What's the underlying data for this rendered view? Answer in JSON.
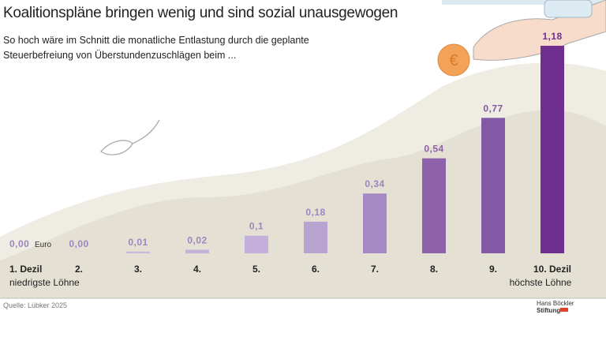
{
  "title": "Koalitionspläne bringen wenig und sind sozial unausgewogen",
  "subtitle": "So hoch wäre im Schnitt die monatliche Entlastung durch die geplante Steuerbefreiung von Überstundenzuschlägen beim ...",
  "source": "Quelle: Lübker 2025",
  "logo": [
    "Hans Böckler",
    "Stiftung"
  ],
  "chart_data": {
    "type": "bar",
    "categories": [
      "1. Dezil",
      "2.",
      "3.",
      "4.",
      "5.",
      "6.",
      "7.",
      "8.",
      "9.",
      "10. Dezil"
    ],
    "category_sublabels": [
      "niedrigste Löhne",
      null,
      null,
      null,
      null,
      null,
      null,
      null,
      null,
      "höchste Löhne"
    ],
    "values": [
      0,
      0,
      0.01,
      0.02,
      0.1,
      0.18,
      0.34,
      0.54,
      0.77,
      1.18
    ],
    "value_labels": [
      "0,00",
      "0,00",
      "0,01",
      "0,02",
      "0,1",
      "0,18",
      "0,34",
      "0,54",
      "0,77",
      "1,18"
    ],
    "unit": "Euro",
    "colors": [
      "#c5b7d8",
      "#c5b7d8",
      "#c9b8dc",
      "#c4b1d8",
      "#c3afd9",
      "#b9a3d0",
      "#a689c4",
      "#8e62aa",
      "#8359a6",
      "#6e2f8f"
    ]
  }
}
